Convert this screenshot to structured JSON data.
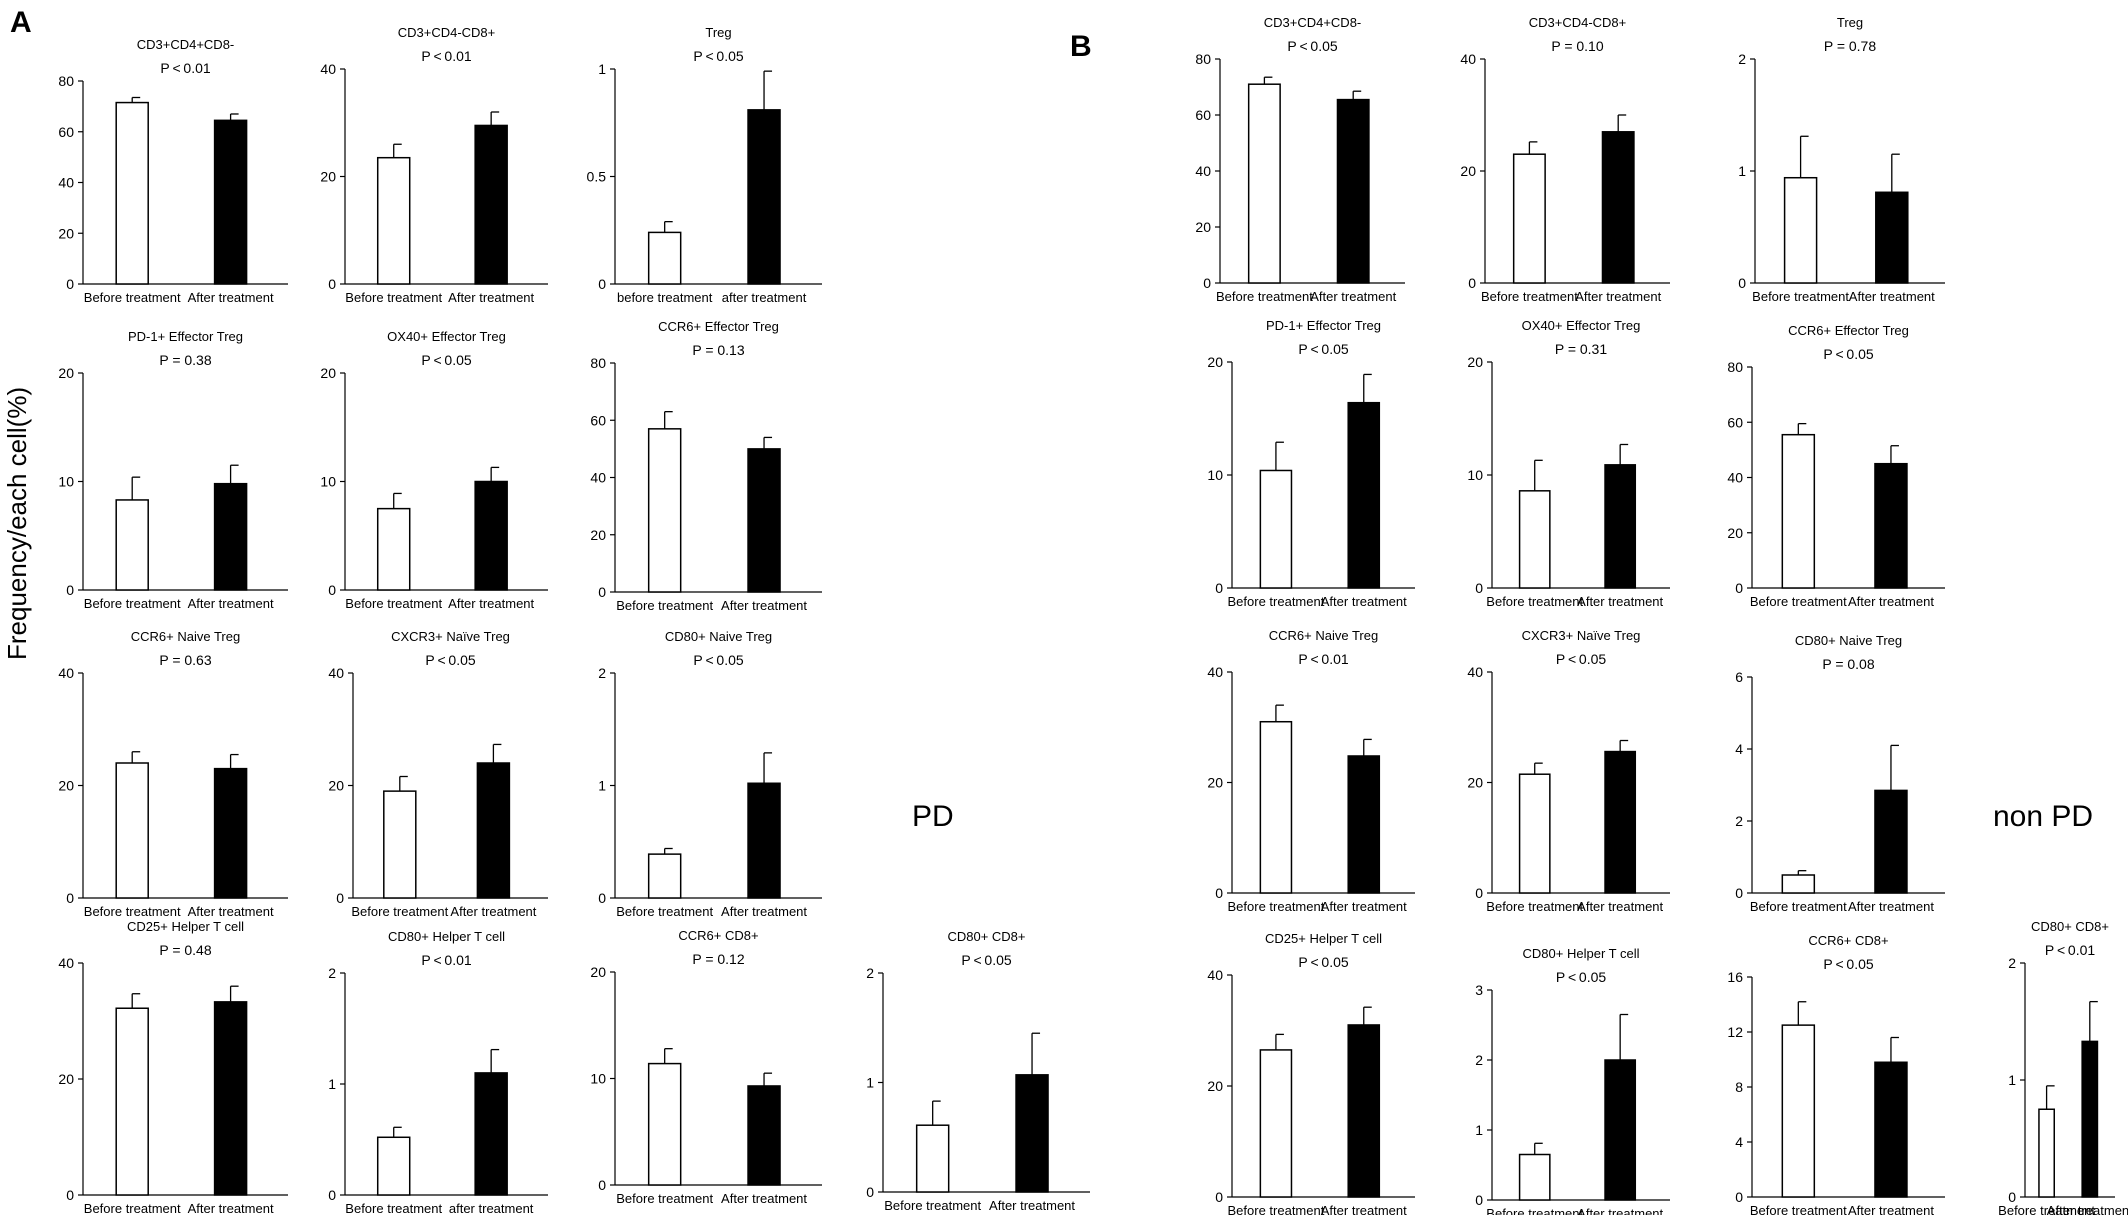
{
  "figure": {
    "panel_labels": [
      "A",
      "B"
    ],
    "y_axis_title": "Frequency/each cell(%)",
    "group_labels": [
      "PD",
      "non PD"
    ]
  },
  "chart_data": [
    {
      "type": "bar",
      "panel": "A",
      "title": "CD3+CD4+CD8-",
      "pvalue": "P < 0.01",
      "categories": [
        "Before treatment",
        "After treatment"
      ],
      "values": [
        71.5,
        64.5
      ],
      "errors": [
        2,
        2.5
      ],
      "ylim": [
        0,
        80
      ],
      "yticks": [
        "0",
        "20",
        "40",
        "60",
        "80"
      ]
    },
    {
      "type": "bar",
      "panel": "A",
      "title": "CD3+CD4-CD8+",
      "pvalue": "P < 0.01",
      "categories": [
        "Before treatment",
        "After treatment"
      ],
      "values": [
        23.5,
        29.5
      ],
      "errors": [
        2.5,
        2.5
      ],
      "ylim": [
        0,
        40
      ],
      "yticks": [
        "0",
        "20",
        "40"
      ]
    },
    {
      "type": "bar",
      "panel": "A",
      "title": "Treg",
      "pvalue": "P < 0.05",
      "categories": [
        "before treatment",
        "after treatment"
      ],
      "values": [
        0.24,
        0.81
      ],
      "errors": [
        0.05,
        0.18
      ],
      "ylim": [
        0,
        1
      ],
      "yticks": [
        "0",
        "0.5",
        "1"
      ]
    },
    {
      "type": "bar",
      "panel": "A",
      "title": "PD-1+ Effector Treg",
      "pvalue": "P = 0.38",
      "categories": [
        "Before treatment",
        "After treatment"
      ],
      "values": [
        8.3,
        9.8
      ],
      "errors": [
        2.1,
        1.7
      ],
      "ylim": [
        0,
        20
      ],
      "yticks": [
        "0",
        "10",
        "20"
      ]
    },
    {
      "type": "bar",
      "panel": "A",
      "title": "OX40+ Effector Treg",
      "pvalue": "P < 0.05",
      "categories": [
        "Before treatment",
        "After treatment"
      ],
      "values": [
        7.5,
        10
      ],
      "errors": [
        1.4,
        1.3
      ],
      "ylim": [
        0,
        20
      ],
      "yticks": [
        "0",
        "10",
        "20"
      ]
    },
    {
      "type": "bar",
      "panel": "A",
      "title": "CCR6+ Effector Treg",
      "pvalue": "P = 0.13",
      "categories": [
        "Before treatment",
        "After treatment"
      ],
      "values": [
        57,
        50
      ],
      "errors": [
        6,
        4
      ],
      "ylim": [
        0,
        80
      ],
      "yticks": [
        "0",
        "20",
        "40",
        "60",
        "80"
      ]
    },
    {
      "type": "bar",
      "panel": "A",
      "title": "CCR6+ Naive Treg",
      "pvalue": "P = 0.63",
      "categories": [
        "Before treatment",
        "After treatment"
      ],
      "values": [
        24,
        23
      ],
      "errors": [
        2,
        2.5
      ],
      "ylim": [
        0,
        40
      ],
      "yticks": [
        "0",
        "20",
        "40"
      ]
    },
    {
      "type": "bar",
      "panel": "A",
      "title": "CXCR3+ Naïve Treg",
      "pvalue": "P < 0.05",
      "categories": [
        "Before treatment",
        "After treatment"
      ],
      "values": [
        19,
        24
      ],
      "errors": [
        2.6,
        3.3
      ],
      "ylim": [
        0,
        40
      ],
      "yticks": [
        "0",
        "20",
        "40"
      ]
    },
    {
      "type": "bar",
      "panel": "A",
      "title": "CD80+ Naive Treg",
      "pvalue": "P < 0.05",
      "categories": [
        "Before treatment",
        "After treatment"
      ],
      "values": [
        0.39,
        1.02
      ],
      "errors": [
        0.05,
        0.27
      ],
      "ylim": [
        0,
        2
      ],
      "yticks": [
        "0",
        "1",
        "2"
      ]
    },
    {
      "type": "bar",
      "panel": "A",
      "title": "CD25+ Helper T cell",
      "pvalue": "P = 0.48",
      "categories": [
        "Before treatment",
        "After treatment"
      ],
      "values": [
        32.2,
        33.3
      ],
      "errors": [
        2.5,
        2.7
      ],
      "ylim": [
        0,
        40
      ],
      "yticks": [
        "0",
        "20",
        "40"
      ]
    },
    {
      "type": "bar",
      "panel": "A",
      "title": "CD80+ Helper T cell",
      "pvalue": "P < 0.01",
      "categories": [
        "Before treatment",
        "after treatment"
      ],
      "values": [
        0.52,
        1.1
      ],
      "errors": [
        0.09,
        0.21
      ],
      "ylim": [
        0,
        2
      ],
      "yticks": [
        "0",
        "1",
        "2"
      ]
    },
    {
      "type": "bar",
      "panel": "A",
      "title": "CCR6+ CD8+",
      "pvalue": "P = 0.12",
      "categories": [
        "Before treatment",
        "After treatment"
      ],
      "values": [
        11.4,
        9.3
      ],
      "errors": [
        1.4,
        1.2
      ],
      "ylim": [
        0,
        20
      ],
      "yticks": [
        "0",
        "10",
        "20"
      ]
    },
    {
      "type": "bar",
      "panel": "A",
      "title": "CD80+ CD8+",
      "pvalue": "P < 0.05",
      "categories": [
        "Before treatment",
        "After treatment"
      ],
      "values": [
        0.61,
        1.07
      ],
      "errors": [
        0.22,
        0.38
      ],
      "ylim": [
        0,
        2
      ],
      "yticks": [
        "0",
        "1",
        "2"
      ]
    },
    {
      "type": "bar",
      "panel": "B",
      "title": "CD3+CD4+CD8-",
      "pvalue": "P < 0.05",
      "categories": [
        "Before treatment",
        "After treatment"
      ],
      "values": [
        71,
        65.5
      ],
      "errors": [
        2.5,
        3
      ],
      "ylim": [
        0,
        80
      ],
      "yticks": [
        "0",
        "20",
        "40",
        "60",
        "80"
      ]
    },
    {
      "type": "bar",
      "panel": "B",
      "title": "CD3+CD4-CD8+",
      "pvalue": "P = 0.10",
      "categories": [
        "Before treatment",
        "After treatment"
      ],
      "values": [
        23,
        27
      ],
      "errors": [
        2.2,
        3
      ],
      "ylim": [
        0,
        40
      ],
      "yticks": [
        "0",
        "20",
        "40"
      ]
    },
    {
      "type": "bar",
      "panel": "B",
      "title": "Treg",
      "pvalue": "P = 0.78",
      "categories": [
        "Before treatment",
        "After treatment"
      ],
      "values": [
        0.94,
        0.81
      ],
      "errors": [
        0.37,
        0.34
      ],
      "ylim": [
        0,
        2
      ],
      "yticks": [
        "0",
        "1",
        "2"
      ]
    },
    {
      "type": "bar",
      "panel": "B",
      "title": "PD-1+ Effector Treg",
      "pvalue": "P < 0.05",
      "categories": [
        "Before treatment",
        "After treatment"
      ],
      "values": [
        10.4,
        16.4
      ],
      "errors": [
        2.5,
        2.5
      ],
      "ylim": [
        0,
        20
      ],
      "yticks": [
        "0",
        "10",
        "20"
      ]
    },
    {
      "type": "bar",
      "panel": "B",
      "title": "OX40+ Effector Treg",
      "pvalue": "P = 0.31",
      "categories": [
        "Before treatment",
        "After treatment"
      ],
      "values": [
        8.6,
        10.9
      ],
      "errors": [
        2.7,
        1.8
      ],
      "ylim": [
        0,
        20
      ],
      "yticks": [
        "0",
        "10",
        "20"
      ]
    },
    {
      "type": "bar",
      "panel": "B",
      "title": "CCR6+ Effector Treg",
      "pvalue": "P < 0.05",
      "categories": [
        "Before treatment",
        "After treatment"
      ],
      "values": [
        55.5,
        45
      ],
      "errors": [
        4,
        6.5
      ],
      "ylim": [
        0,
        80
      ],
      "yticks": [
        "0",
        "20",
        "40",
        "60",
        "80"
      ]
    },
    {
      "type": "bar",
      "panel": "B",
      "title": "CCR6+ Naive Treg",
      "pvalue": "P < 0.01",
      "categories": [
        "Before treatment",
        "After treatment"
      ],
      "values": [
        31,
        24.8
      ],
      "errors": [
        3,
        3
      ],
      "ylim": [
        0,
        40
      ],
      "yticks": [
        "0",
        "20",
        "40"
      ]
    },
    {
      "type": "bar",
      "panel": "B",
      "title": "CXCR3+ Naïve Treg",
      "pvalue": "P < 0.05",
      "categories": [
        "Before treatment",
        "After treatment"
      ],
      "values": [
        21.5,
        25.6
      ],
      "errors": [
        2,
        2
      ],
      "ylim": [
        0,
        40
      ],
      "yticks": [
        "0",
        "20",
        "40"
      ]
    },
    {
      "type": "bar",
      "panel": "B",
      "title": "CD80+ Naive Treg",
      "pvalue": "P = 0.08",
      "categories": [
        "Before treatment",
        "After treatment"
      ],
      "values": [
        0.5,
        2.85
      ],
      "errors": [
        0.12,
        1.25
      ],
      "ylim": [
        0,
        6
      ],
      "yticks": [
        "0",
        "2",
        "4",
        "6"
      ]
    },
    {
      "type": "bar",
      "panel": "B",
      "title": "CD25+ Helper T cell",
      "pvalue": "P < 0.05",
      "categories": [
        "Before treatment",
        "After treatment"
      ],
      "values": [
        26.5,
        31
      ],
      "errors": [
        2.8,
        3.2
      ],
      "ylim": [
        0,
        40
      ],
      "yticks": [
        "0",
        "20",
        "40"
      ]
    },
    {
      "type": "bar",
      "panel": "B",
      "title": "CD80+ Helper T cell",
      "pvalue": "P < 0.05",
      "categories": [
        "Before treatment",
        "After treatment"
      ],
      "values": [
        0.65,
        2
      ],
      "errors": [
        0.16,
        0.65
      ],
      "ylim": [
        0,
        3
      ],
      "yticks": [
        "0",
        "1",
        "2",
        "3"
      ]
    },
    {
      "type": "bar",
      "panel": "B",
      "title": "CCR6+ CD8+",
      "pvalue": "P < 0.05",
      "categories": [
        "Before treatment",
        "After treatment"
      ],
      "values": [
        12.5,
        9.8
      ],
      "errors": [
        1.7,
        1.8
      ],
      "ylim": [
        0,
        16
      ],
      "yticks": [
        "0",
        "4",
        "8",
        "12",
        "16"
      ]
    },
    {
      "type": "bar",
      "panel": "B",
      "title": "CD80+ CD8+",
      "pvalue": "P < 0.01",
      "categories": [
        "Before treatment",
        "After treatment"
      ],
      "values": [
        0.75,
        1.33
      ],
      "errors": [
        0.2,
        0.34
      ],
      "ylim": [
        0,
        2
      ],
      "yticks": [
        "0",
        "1",
        "2"
      ]
    }
  ]
}
